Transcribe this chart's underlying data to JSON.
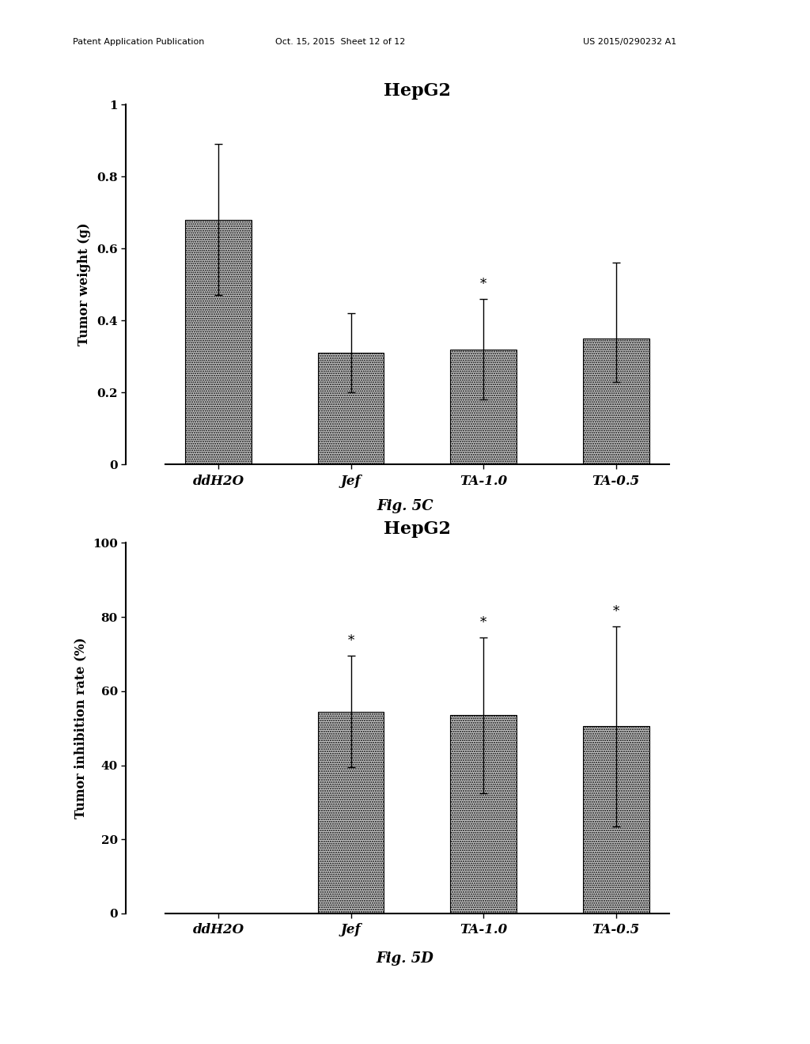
{
  "fig5c": {
    "title": "HepG2",
    "ylabel": "Tumor weight (g)",
    "categories": [
      "ddH2O",
      "Jef",
      "TA-1.0",
      "TA-0.5"
    ],
    "values": [
      0.68,
      0.31,
      0.32,
      0.35
    ],
    "errors_upper": [
      0.21,
      0.11,
      0.14,
      0.21
    ],
    "errors_lower": [
      0.21,
      0.11,
      0.14,
      0.12
    ],
    "asterisks": [
      false,
      false,
      true,
      false
    ],
    "ylim": [
      0,
      1.0
    ],
    "yticks": [
      0,
      0.2,
      0.4,
      0.6,
      0.8,
      1.0
    ],
    "yticklabels": [
      "0",
      "0.2",
      "0.4",
      "0.6",
      "0.8",
      "1"
    ],
    "fig_label": "Fig. 5C"
  },
  "fig5d": {
    "title": "HepG2",
    "ylabel": "Tumor inhibition rate (%)",
    "categories": [
      "ddH2O",
      "Jef",
      "TA-1.0",
      "TA-0.5"
    ],
    "values": [
      0,
      54.5,
      53.5,
      50.5
    ],
    "errors_upper": [
      0,
      15,
      21,
      27
    ],
    "errors_lower": [
      0,
      15,
      21,
      27
    ],
    "asterisks": [
      false,
      true,
      true,
      true
    ],
    "ylim": [
      0,
      100
    ],
    "yticks": [
      0,
      20,
      40,
      60,
      80,
      100
    ],
    "yticklabels": [
      "0",
      "20",
      "40",
      "60",
      "80",
      "100"
    ],
    "fig_label": "Fig. 5D"
  },
  "bar_color": "#c8c8c8",
  "bar_edgecolor": "#000000",
  "background_color": "#ffffff",
  "header_left": "Patent Application Publication",
  "header_mid": "Oct. 15, 2015  Sheet 12 of 12",
  "header_right": "US 2015/0290232 A1"
}
